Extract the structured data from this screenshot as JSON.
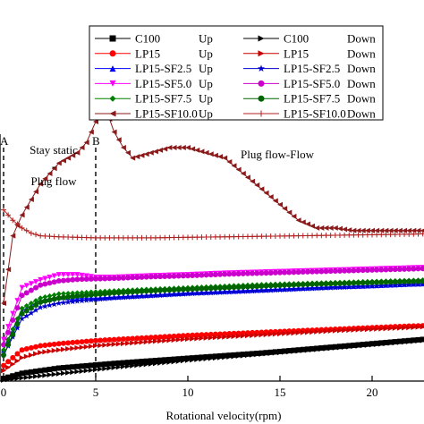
{
  "chart_data": {
    "type": "line",
    "title": "",
    "xlabel": "Rotational velocity(rpm)",
    "ylabel": "",
    "xlim": [
      0,
      23
    ],
    "xticks": [
      0,
      5,
      10,
      15,
      20
    ],
    "grid": false,
    "legend_position": "top-right",
    "annotations": {
      "line_a_label": "A",
      "line_a_x": 0,
      "line_b_label": "B",
      "line_b_x": 5,
      "stay_static_line1": "Stay static",
      "stay_static_line2": "-",
      "stay_static_line3": "Plug flow",
      "plug_flow_flow": "Plug flow-Flow"
    },
    "series": [
      {
        "name": "C100",
        "direction": "Up",
        "color": "#000000",
        "marker": "square",
        "x": [
          0,
          1,
          2,
          3,
          4,
          5,
          6,
          8,
          10,
          12,
          14,
          16,
          18,
          20,
          22,
          23
        ],
        "y": [
          0.05,
          0.15,
          0.2,
          0.25,
          0.28,
          0.31,
          0.34,
          0.39,
          0.44,
          0.49,
          0.54,
          0.6,
          0.66,
          0.72,
          0.78,
          0.81
        ]
      },
      {
        "name": "C100",
        "direction": "Down",
        "color": "#000000",
        "marker": "triangle-right",
        "x": [
          0,
          1,
          2,
          3,
          4,
          5,
          6,
          8,
          10,
          12,
          14,
          16,
          18,
          20,
          22,
          23
        ],
        "y": [
          0.02,
          0.06,
          0.1,
          0.14,
          0.18,
          0.22,
          0.26,
          0.33,
          0.4,
          0.46,
          0.52,
          0.58,
          0.64,
          0.7,
          0.76,
          0.79
        ]
      },
      {
        "name": "LP15",
        "direction": "Up",
        "color": "#ff0000",
        "marker": "circle",
        "x": [
          0,
          1,
          2,
          3,
          4,
          5,
          6,
          8,
          10,
          12,
          14,
          16,
          18,
          20,
          22,
          23
        ],
        "y": [
          0.3,
          0.6,
          0.68,
          0.72,
          0.75,
          0.78,
          0.8,
          0.84,
          0.88,
          0.91,
          0.94,
          0.97,
          1.0,
          1.03,
          1.06,
          1.07
        ]
      },
      {
        "name": "LP15",
        "direction": "Down",
        "color": "#cc0000",
        "marker": "triangle-right",
        "x": [
          0,
          1,
          2,
          3,
          4,
          5,
          6,
          8,
          10,
          12,
          14,
          16,
          18,
          20,
          22,
          23
        ],
        "y": [
          0.2,
          0.45,
          0.55,
          0.6,
          0.64,
          0.68,
          0.71,
          0.76,
          0.81,
          0.85,
          0.89,
          0.93,
          0.97,
          1.0,
          1.03,
          1.05
        ]
      },
      {
        "name": "LP15-SF2.5",
        "direction": "Up",
        "color": "#0000ff",
        "marker": "triangle-up",
        "x": [
          0,
          1,
          2,
          3,
          4,
          5,
          6,
          8,
          10,
          12,
          14,
          16,
          18,
          20,
          22,
          23
        ],
        "y": [
          0.6,
          1.35,
          1.55,
          1.62,
          1.6,
          1.6,
          1.62,
          1.66,
          1.7,
          1.73,
          1.76,
          1.79,
          1.82,
          1.84,
          1.87,
          1.88
        ]
      },
      {
        "name": "LP15-SF2.5",
        "direction": "Down",
        "color": "#0000cc",
        "marker": "star",
        "x": [
          0,
          1,
          2,
          3,
          4,
          5,
          6,
          8,
          10,
          12,
          14,
          16,
          18,
          20,
          22,
          23
        ],
        "y": [
          0.5,
          1.2,
          1.42,
          1.5,
          1.54,
          1.57,
          1.6,
          1.64,
          1.68,
          1.71,
          1.74,
          1.77,
          1.8,
          1.83,
          1.86,
          1.87
        ]
      },
      {
        "name": "LP15-SF5.0",
        "direction": "Up",
        "color": "#ff00ff",
        "marker": "triangle-down",
        "x": [
          0,
          1,
          2,
          3,
          4,
          5,
          6,
          8,
          10,
          12,
          14,
          16,
          18,
          20,
          22,
          23
        ],
        "y": [
          0.8,
          1.8,
          1.95,
          2.05,
          2.05,
          2.0,
          2.0,
          2.03,
          2.05,
          2.08,
          2.1,
          2.12,
          2.14,
          2.16,
          2.18,
          2.19
        ]
      },
      {
        "name": "LP15-SF5.0",
        "direction": "Down",
        "color": "#cc00cc",
        "marker": "circle",
        "x": [
          0,
          1,
          2,
          3,
          4,
          5,
          6,
          8,
          10,
          12,
          14,
          16,
          18,
          20,
          22,
          23
        ],
        "y": [
          0.7,
          1.65,
          1.85,
          1.93,
          1.96,
          1.97,
          1.98,
          2.01,
          2.03,
          2.06,
          2.08,
          2.1,
          2.12,
          2.14,
          2.16,
          2.17
        ]
      },
      {
        "name": "LP15-SF7.5",
        "direction": "Up",
        "color": "#008000",
        "marker": "diamond",
        "x": [
          0,
          1,
          2,
          3,
          4,
          5,
          6,
          8,
          10,
          12,
          14,
          16,
          18,
          20,
          22,
          23
        ],
        "y": [
          0.6,
          1.4,
          1.6,
          1.68,
          1.7,
          1.72,
          1.74,
          1.77,
          1.8,
          1.83,
          1.86,
          1.88,
          1.9,
          1.92,
          1.94,
          1.95
        ]
      },
      {
        "name": "LP15-SF7.5",
        "direction": "Down",
        "color": "#006400",
        "marker": "circle",
        "x": [
          0,
          1,
          2,
          3,
          4,
          5,
          6,
          8,
          10,
          12,
          14,
          16,
          18,
          20,
          22,
          23
        ],
        "y": [
          0.5,
          1.3,
          1.52,
          1.6,
          1.64,
          1.67,
          1.7,
          1.74,
          1.77,
          1.8,
          1.83,
          1.86,
          1.88,
          1.9,
          1.92,
          1.93
        ]
      },
      {
        "name": "LP15-SF10.0",
        "direction": "Up",
        "color": "#8b1a1a",
        "marker": "triangle-left",
        "x": [
          0,
          0.5,
          1,
          1.5,
          2,
          2.5,
          3,
          3.5,
          4,
          4.5,
          5,
          5.5,
          6,
          6.5,
          7,
          8,
          9,
          10,
          11,
          12,
          13,
          14,
          15,
          16,
          17,
          18,
          19,
          20,
          21,
          22,
          23
        ],
        "y": [
          1.5,
          2.8,
          3.2,
          3.5,
          3.8,
          4.0,
          4.2,
          4.3,
          4.4,
          4.6,
          5.0,
          5.3,
          4.8,
          4.5,
          4.3,
          4.4,
          4.5,
          4.5,
          4.4,
          4.3,
          4.0,
          3.7,
          3.4,
          3.1,
          2.95,
          2.95,
          2.9,
          2.9,
          2.9,
          2.9,
          2.9
        ]
      },
      {
        "name": "LP15-SF10.0",
        "direction": "Down",
        "color": "#b02020",
        "marker": "plus",
        "x": [
          0,
          0.5,
          1,
          1.5,
          2,
          3,
          4,
          5,
          6,
          8,
          10,
          12,
          14,
          16,
          18,
          20,
          22,
          23
        ],
        "y": [
          3.3,
          3.1,
          2.95,
          2.85,
          2.8,
          2.78,
          2.77,
          2.76,
          2.76,
          2.76,
          2.77,
          2.78,
          2.79,
          2.8,
          2.81,
          2.82,
          2.83,
          2.84
        ]
      }
    ]
  }
}
